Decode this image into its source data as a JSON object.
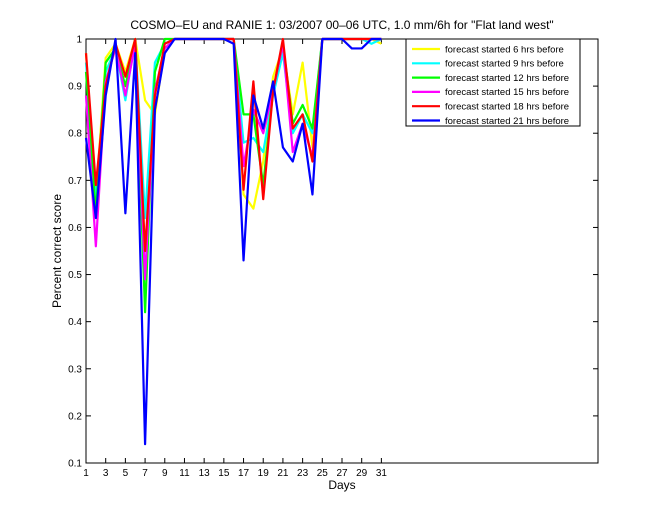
{
  "chart_data": {
    "type": "line",
    "title": "COSMO–EU and RANIE 1: 03/2007 00–06 UTC, 1.0 mm/6h for \"Flat land west\"",
    "xlabel": "Days",
    "ylabel": "Percent correct score",
    "xlim": [
      1,
      53
    ],
    "ylim": [
      0.1,
      1
    ],
    "xticks": [
      1,
      3,
      5,
      7,
      9,
      11,
      13,
      15,
      17,
      19,
      21,
      23,
      25,
      27,
      29,
      31
    ],
    "yticks": [
      0.1,
      0.2,
      0.3,
      0.4,
      0.5,
      0.6,
      0.7,
      0.8,
      0.9,
      1
    ],
    "x": [
      1,
      2,
      3,
      4,
      5,
      6,
      7,
      8,
      9,
      10,
      11,
      12,
      13,
      14,
      15,
      16,
      17,
      18,
      19,
      20,
      21,
      22,
      23,
      24,
      25,
      26,
      27,
      28,
      29,
      30,
      31
    ],
    "legend_position": "top-right",
    "series": [
      {
        "name": "forecast started 6 hrs before",
        "color": "#ffff00",
        "values": [
          0.97,
          0.66,
          0.96,
          0.99,
          0.93,
          1.0,
          0.87,
          0.84,
          0.98,
          1.0,
          1.0,
          1.0,
          1.0,
          1.0,
          1.0,
          1.0,
          0.67,
          0.64,
          0.74,
          0.92,
          0.98,
          0.84,
          0.95,
          0.77,
          1.0,
          1.0,
          1.0,
          1.0,
          1.0,
          1.0,
          0.99
        ]
      },
      {
        "name": "forecast started 9 hrs before",
        "color": "#00ffff",
        "values": [
          0.95,
          0.66,
          0.93,
          0.98,
          0.87,
          1.0,
          0.62,
          0.95,
          0.99,
          1.0,
          1.0,
          1.0,
          1.0,
          1.0,
          1.0,
          1.0,
          0.78,
          0.79,
          0.76,
          0.88,
          0.97,
          0.8,
          0.84,
          0.8,
          1.0,
          1.0,
          1.0,
          1.0,
          1.0,
          0.99,
          1.0
        ]
      },
      {
        "name": "forecast started 12 hrs before",
        "color": "#00ff00",
        "values": [
          0.93,
          0.63,
          0.95,
          0.98,
          0.9,
          1.0,
          0.42,
          0.93,
          1.0,
          1.0,
          1.0,
          1.0,
          1.0,
          1.0,
          1.0,
          1.0,
          0.84,
          0.84,
          0.69,
          0.89,
          0.99,
          0.82,
          0.86,
          0.81,
          1.0,
          1.0,
          1.0,
          1.0,
          1.0,
          1.0,
          1.0
        ]
      },
      {
        "name": "forecast started 15 hrs before",
        "color": "#ff00ff",
        "values": [
          0.88,
          0.56,
          0.91,
          0.98,
          0.88,
          0.99,
          0.49,
          0.89,
          0.98,
          1.0,
          1.0,
          1.0,
          1.0,
          1.0,
          1.0,
          1.0,
          0.73,
          0.85,
          0.8,
          0.89,
          0.99,
          0.76,
          0.82,
          0.75,
          1.0,
          1.0,
          1.0,
          1.0,
          1.0,
          1.0,
          1.0
        ]
      },
      {
        "name": "forecast started 18 hrs before",
        "color": "#ff0000",
        "values": [
          0.97,
          0.69,
          0.9,
          0.99,
          0.92,
          1.0,
          0.55,
          0.88,
          0.99,
          1.0,
          1.0,
          1.0,
          1.0,
          1.0,
          1.0,
          1.0,
          0.68,
          0.91,
          0.66,
          0.89,
          1.0,
          0.81,
          0.84,
          0.74,
          1.0,
          1.0,
          1.0,
          1.0,
          1.0,
          1.0,
          1.0
        ]
      },
      {
        "name": "forecast started 21 hrs before",
        "color": "#0000ff",
        "values": [
          0.79,
          0.62,
          0.88,
          1.0,
          0.63,
          0.97,
          0.14,
          0.85,
          0.97,
          1.0,
          1.0,
          1.0,
          1.0,
          1.0,
          1.0,
          0.99,
          0.53,
          0.88,
          0.81,
          0.91,
          0.77,
          0.74,
          0.82,
          0.67,
          1.0,
          1.0,
          1.0,
          0.98,
          0.98,
          1.0,
          1.0
        ]
      }
    ]
  }
}
